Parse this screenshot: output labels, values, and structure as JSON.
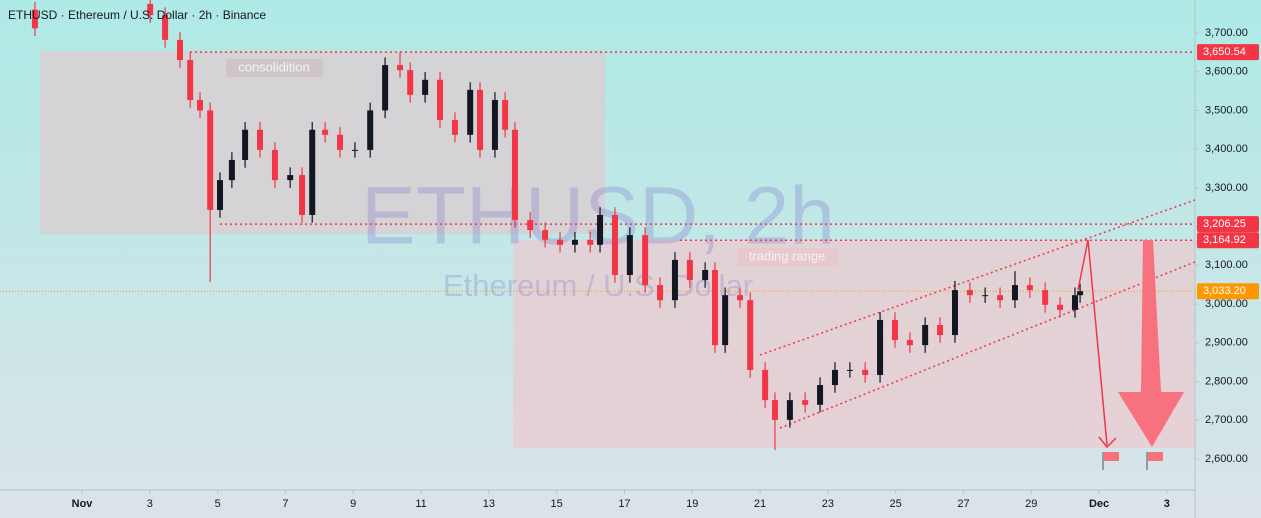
{
  "chart_data": {
    "type": "candlestick",
    "title": "ETHUSD · Ethereum / U.S. Dollar · 2h · Binance",
    "watermark": "ETHUSD, 2h",
    "watermark_sub": "Ethereum / U.S. Dollar",
    "zone_labels": [
      "consolidition",
      "trading range"
    ],
    "up_color": "#131722",
    "down_color": "#f23645",
    "xlim": [
      -1.42,
      33.83
    ],
    "ylim": [
      2520,
      3785
    ],
    "xticks": [
      {
        "value": 1,
        "label": "Nov"
      },
      3,
      5,
      7,
      9,
      11,
      13,
      15,
      17,
      19,
      21,
      23,
      25,
      27,
      29,
      {
        "value": 31,
        "label": "Dec"
      },
      {
        "value": 33,
        "label": "3"
      }
    ],
    "yticks": [
      {
        "value": 2600,
        "label": "2,600.00"
      },
      {
        "value": 2700,
        "label": "2,700.00"
      },
      {
        "value": 2800,
        "label": "2,800.00"
      },
      {
        "value": 2900,
        "label": "2,900.00"
      },
      {
        "value": 3000,
        "label": "3,000.00"
      },
      {
        "value": 3100,
        "label": "3,100.00"
      },
      {
        "value": 3200,
        "label": "3,200.00"
      },
      {
        "value": 3300,
        "label": "3,300.00"
      },
      {
        "value": 3400,
        "label": "3,400.00"
      },
      {
        "value": 3500,
        "label": "3,500.00"
      },
      {
        "value": 3600,
        "label": "3,600.00"
      },
      {
        "value": 3700,
        "label": "3,700.00"
      }
    ],
    "levels": [
      {
        "value": 3650.54,
        "label": "3,650.54",
        "color": "#f23645"
      },
      {
        "value": 3206.25,
        "label": "3,206.25",
        "color": "#f23645"
      },
      {
        "value": 3164.92,
        "label": "3,164.92",
        "color": "#f23645"
      },
      {
        "value": 3033.2,
        "label": "3,033.20",
        "color": "#ff9800"
      }
    ],
    "x": [
      -0.39,
      3.01,
      3.45,
      3.89,
      4.19,
      4.48,
      4.78,
      5.07,
      5.42,
      5.81,
      6.25,
      6.69,
      7.14,
      7.49,
      7.79,
      8.17,
      8.61,
      9.05,
      9.5,
      9.94,
      10.38,
      10.68,
      11.12,
      11.56,
      12.0,
      12.45,
      12.74,
      13.18,
      13.48,
      13.77,
      14.22,
      14.66,
      15.1,
      15.54,
      15.99,
      16.28,
      16.72,
      17.16,
      17.61,
      18.05,
      18.49,
      18.93,
      19.38,
      19.67,
      19.97,
      20.41,
      20.71,
      21.15,
      21.44,
      21.88,
      22.33,
      22.77,
      23.21,
      23.65,
      24.1,
      24.54,
      24.98,
      25.42,
      25.87,
      26.31,
      26.75,
      27.19,
      27.64,
      28.08,
      28.52,
      28.96,
      29.41,
      29.85,
      30.29,
      30.44
    ],
    "open": [
      3760,
      3775,
      3746,
      3682,
      3630,
      3527,
      3500,
      3243,
      3320,
      3372,
      3450,
      3398,
      3320,
      3333,
      3230,
      3450,
      3437,
      3398,
      3398,
      3500,
      3617,
      3604,
      3540,
      3579,
      3475,
      3437,
      3553,
      3398,
      3527,
      3450,
      3217,
      3191,
      3166,
      3153,
      3166,
      3153,
      3230,
      3075,
      3178,
      3049,
      3010,
      3114,
      3062,
      3088,
      2894,
      3023,
      3010,
      2830,
      2752,
      2701,
      2752,
      2740,
      2791,
      2830,
      2830,
      2817,
      2959,
      2907,
      2894,
      2946,
      2920,
      3036,
      3023,
      3023,
      3010,
      3049,
      3036,
      2998,
      2985,
      3023
    ],
    "high": [
      3780,
      3795,
      3766,
      3702,
      3650,
      3547,
      3520,
      3340,
      3392,
      3470,
      3470,
      3418,
      3353,
      3353,
      3470,
      3470,
      3457,
      3418,
      3520,
      3637,
      3650,
      3624,
      3599,
      3599,
      3495,
      3573,
      3573,
      3547,
      3547,
      3470,
      3237,
      3211,
      3186,
      3186,
      3186,
      3250,
      3250,
      3198,
      3198,
      3069,
      3134,
      3134,
      3108,
      3108,
      3043,
      3043,
      3030,
      2850,
      2772,
      2772,
      2772,
      2811,
      2850,
      2850,
      2850,
      2979,
      2979,
      2927,
      2966,
      2966,
      3060,
      3056,
      3043,
      3043,
      3085,
      3069,
      3056,
      3018,
      3043,
      3053
    ],
    "low": [
      3692,
      3726,
      3662,
      3610,
      3507,
      3480,
      3057,
      3223,
      3300,
      3352,
      3378,
      3300,
      3300,
      3210,
      3210,
      3417,
      3378,
      3378,
      3378,
      3480,
      3584,
      3520,
      3520,
      3455,
      3417,
      3417,
      3378,
      3378,
      3430,
      3197,
      3171,
      3146,
      3133,
      3133,
      3133,
      3133,
      3055,
      3055,
      3029,
      2990,
      2990,
      3042,
      3042,
      2874,
      2874,
      2990,
      2810,
      2732,
      2623,
      2681,
      2720,
      2720,
      2771,
      2810,
      2797,
      2797,
      2887,
      2874,
      2874,
      2900,
      2900,
      3003,
      3003,
      2990,
      2990,
      3016,
      2978,
      2965,
      2965,
      3003
    ],
    "close": [
      3712,
      3746,
      3682,
      3630,
      3527,
      3500,
      3243,
      3320,
      3372,
      3450,
      3398,
      3320,
      3333,
      3230,
      3450,
      3437,
      3398,
      3398,
      3500,
      3617,
      3604,
      3540,
      3579,
      3475,
      3437,
      3553,
      3398,
      3527,
      3450,
      3217,
      3191,
      3166,
      3153,
      3166,
      3153,
      3230,
      3075,
      3178,
      3049,
      3010,
      3114,
      3062,
      3088,
      2894,
      3023,
      3010,
      2830,
      2752,
      2701,
      2752,
      2740,
      2791,
      2830,
      2830,
      2817,
      2959,
      2907,
      2894,
      2946,
      2920,
      3036,
      3023,
      3023,
      3010,
      3049,
      3036,
      2998,
      2985,
      3023,
      3033.2
    ]
  }
}
